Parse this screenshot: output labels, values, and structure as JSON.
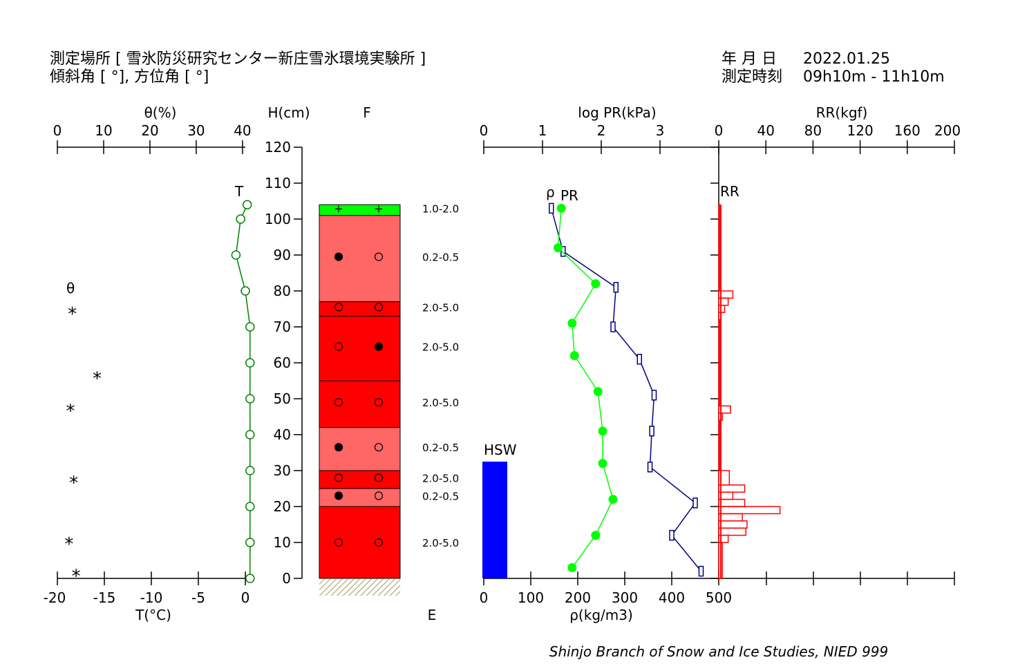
{
  "header": {
    "site_label": "測定場所 [ 雪氷防災研究センター新庄雪氷環境実験所 ]",
    "slope_label": "傾斜角 [ °], 方位角 [ °]",
    "date_label": "年 月 日",
    "date_value": "2022.01.25",
    "time_label": "測定時刻",
    "time_value": "09h10m - 11h10m"
  },
  "credit": "Shinjo Branch of Snow and Ice Studies, NIED 999",
  "colors": {
    "temperature": "#008000",
    "wetness": "#000000",
    "density": "#00ff00",
    "pr": "#000080",
    "rr": "#ff0000",
    "hsw": "#0000ff",
    "layer_light": "#ff6666",
    "layer_dark": "#ff0000",
    "layer_top": "#00ff00",
    "ground": "#a59a55"
  },
  "chart_data": [
    {
      "type": "line",
      "panel": "temperature",
      "series": [
        {
          "name": "T",
          "x": [
            0.2,
            -0.5,
            -1.0,
            0.0,
            0.5,
            0.5,
            0.5,
            0.5,
            0.5,
            0.5,
            0.5,
            0.5
          ],
          "y": [
            104,
            100,
            90,
            80,
            70,
            60,
            50,
            40,
            30,
            20,
            10,
            0
          ]
        }
      ],
      "xlabel": "T(°C)",
      "xlim": [
        -20,
        0
      ],
      "xticks": [
        "-20",
        "-15",
        "-10",
        "-5",
        "0"
      ],
      "ylim": [
        0,
        120
      ]
    },
    {
      "type": "scatter",
      "panel": "water-content",
      "series": [
        {
          "name": "θ",
          "marker": "*",
          "x": [
            3.2,
            8.5,
            2.8,
            3.5,
            2.5,
            4.0
          ],
          "y": [
            75,
            57,
            48,
            28,
            11,
            2
          ]
        }
      ],
      "xlabel": "θ(%)",
      "xlim": [
        0,
        40
      ],
      "xticks": [
        "0",
        "10",
        "20",
        "30",
        "40"
      ],
      "ylim": [
        0,
        120
      ]
    },
    {
      "type": "table",
      "panel": "stratigraphy",
      "height_axis": {
        "label": "H(cm)",
        "ticks": [
          "0",
          "10",
          "20",
          "30",
          "40",
          "50",
          "60",
          "70",
          "80",
          "90",
          "100",
          "110",
          "120"
        ]
      },
      "column_label": "F",
      "bottom_label": "E",
      "layers": [
        {
          "bottom": 101,
          "top": 104,
          "tone": "top",
          "shapes": [
            "+",
            "+"
          ],
          "grain": "1.0-2.0"
        },
        {
          "bottom": 77,
          "top": 101,
          "tone": "light",
          "shapes": [
            "filled",
            "open"
          ],
          "grain": "0.2-0.5"
        },
        {
          "bottom": 73,
          "top": 77,
          "tone": "dark",
          "shapes": [
            "open",
            "open"
          ],
          "grain": "2.0-5.0"
        },
        {
          "bottom": 55,
          "top": 73,
          "tone": "dark",
          "shapes": [
            "open",
            "filled"
          ],
          "grain": "2.0-5.0"
        },
        {
          "bottom": 42,
          "top": 55,
          "tone": "dark",
          "shapes": [
            "open",
            "open"
          ],
          "grain": "2.0-5.0"
        },
        {
          "bottom": 30,
          "top": 42,
          "tone": "light",
          "shapes": [
            "filled",
            "open"
          ],
          "grain": "0.2-0.5"
        },
        {
          "bottom": 25,
          "top": 30,
          "tone": "dark",
          "shapes": [
            "open",
            "open"
          ],
          "grain": "2.0-5.0"
        },
        {
          "bottom": 20,
          "top": 25,
          "tone": "light",
          "shapes": [
            "filled",
            "open"
          ],
          "grain": "0.2-0.5"
        },
        {
          "bottom": 0,
          "top": 20,
          "tone": "dark",
          "shapes": [
            "open",
            "open"
          ],
          "grain": "2.0-5.0"
        }
      ],
      "label_heights": [
        103,
        89.5,
        75.5,
        64.5,
        49,
        36.5,
        28,
        23,
        10
      ]
    },
    {
      "type": "line",
      "panel": "density",
      "series": [
        {
          "name": "ρ",
          "x": [
            165,
            158,
            238,
            188,
            193,
            243,
            253,
            253,
            275,
            238,
            188
          ],
          "y": [
            103,
            92,
            82,
            71,
            62,
            52,
            41,
            32,
            22,
            12,
            3
          ]
        }
      ],
      "xlabel": "ρ(kg/m3)",
      "xlim": [
        0,
        500
      ],
      "xticks": [
        "0",
        "100",
        "200",
        "300",
        "400",
        "500"
      ],
      "ylim": [
        0,
        120
      ]
    },
    {
      "type": "line",
      "panel": "penetration-resistance",
      "series": [
        {
          "name": "PR",
          "x": [
            1.15,
            1.35,
            2.25,
            2.2,
            2.65,
            2.9,
            2.86,
            2.83,
            3.6,
            3.2,
            3.7
          ],
          "y": [
            103,
            91,
            81,
            70,
            61,
            51,
            41,
            31,
            21,
            12,
            2
          ]
        }
      ],
      "xlabel": "log PR(kPa)",
      "xlim": [
        0,
        4
      ],
      "xticks": [
        "0",
        "1",
        "2",
        "3"
      ],
      "ylim": [
        0,
        120
      ]
    },
    {
      "type": "bar",
      "panel": "rammsonde",
      "series": [
        {
          "name": "RR",
          "bottoms": [
            80,
            78,
            76,
            74,
            72,
            48,
            46,
            44,
            30,
            26,
            24,
            22,
            20,
            18,
            16,
            14,
            12,
            10,
            0
          ],
          "tops": [
            104,
            80,
            78,
            76,
            74,
            72,
            48,
            46,
            44,
            30,
            26,
            24,
            22,
            20,
            18,
            16,
            14,
            12,
            10
          ],
          "values": [
            1,
            12,
            8,
            5,
            2,
            1,
            10,
            3,
            1,
            9,
            22,
            12,
            22,
            52,
            20,
            24,
            23,
            8,
            3
          ]
        }
      ],
      "xlabel": "RR(kgf)",
      "xlim": [
        0,
        200
      ],
      "xticks": [
        "0",
        "40",
        "80",
        "120",
        "160",
        "200"
      ],
      "ylim": [
        0,
        120
      ]
    },
    {
      "type": "bar",
      "panel": "snow-water-equivalent",
      "series": [
        {
          "name": "HSW",
          "value": 32.5
        }
      ],
      "ylim": [
        0,
        120
      ]
    }
  ],
  "labels": {
    "theta_axis": "θ(%)",
    "theta_marker": "θ",
    "t_axis": "T(°C)",
    "t_marker": "T",
    "h_axis": "H(cm)",
    "f_label": "F",
    "e_label": "E",
    "rho_axis": "ρ(kg/m3)",
    "rho_marker": "ρ",
    "pr_axis": "log PR(kPa)",
    "pr_marker": "PR",
    "rr_axis": "RR(kgf)",
    "rr_marker": "RR",
    "hsw_label": "HSW"
  }
}
